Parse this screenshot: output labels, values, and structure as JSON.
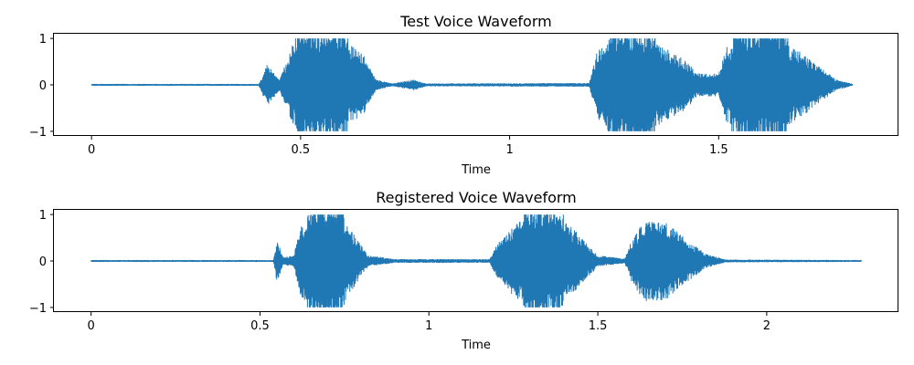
{
  "colors": {
    "series": "#1f77b4",
    "axes": "#000000",
    "background": "#ffffff"
  },
  "chart_data": [
    {
      "type": "line",
      "title": "Test Voice Waveform",
      "xlabel": "Time",
      "ylabel": "",
      "xlim": [
        -0.09,
        1.93
      ],
      "ylim": [
        -1.1,
        1.1
      ],
      "xticks": [
        0,
        0.5,
        1,
        1.5
      ],
      "xtick_labels": [
        "0",
        "0.5",
        "1",
        "1.5"
      ],
      "yticks": [
        1,
        0,
        -1
      ],
      "ytick_labels": [
        "1",
        "0",
        "−1"
      ],
      "grid": false,
      "duration": 1.82,
      "envelope": [
        [
          0.0,
          0.02
        ],
        [
          0.4,
          0.02
        ],
        [
          0.42,
          0.45
        ],
        [
          0.45,
          0.12
        ],
        [
          0.48,
          0.85
        ],
        [
          0.5,
          1.0
        ],
        [
          0.6,
          1.0
        ],
        [
          0.65,
          0.65
        ],
        [
          0.68,
          0.12
        ],
        [
          0.72,
          0.03
        ],
        [
          0.77,
          0.12
        ],
        [
          0.8,
          0.03
        ],
        [
          1.19,
          0.04
        ],
        [
          1.21,
          0.75
        ],
        [
          1.25,
          1.0
        ],
        [
          1.33,
          1.0
        ],
        [
          1.42,
          0.55
        ],
        [
          1.45,
          0.25
        ],
        [
          1.5,
          0.25
        ],
        [
          1.52,
          0.85
        ],
        [
          1.55,
          1.0
        ],
        [
          1.65,
          1.0
        ],
        [
          1.72,
          0.55
        ],
        [
          1.78,
          0.12
        ],
        [
          1.82,
          0.02
        ]
      ]
    },
    {
      "type": "line",
      "title": "Registered Voice Waveform",
      "xlabel": "Time",
      "ylabel": "",
      "xlim": [
        -0.11,
        2.39
      ],
      "ylim": [
        -1.1,
        1.1
      ],
      "xticks": [
        0,
        0.5,
        1,
        1.5,
        2
      ],
      "xtick_labels": [
        "0",
        "0.5",
        "1",
        "1.5",
        "2"
      ],
      "yticks": [
        1,
        0,
        -1
      ],
      "ytick_labels": [
        "1",
        "0",
        "−1"
      ],
      "grid": false,
      "duration": 2.28,
      "envelope": [
        [
          0.0,
          0.02
        ],
        [
          0.54,
          0.02
        ],
        [
          0.55,
          0.45
        ],
        [
          0.57,
          0.08
        ],
        [
          0.6,
          0.12
        ],
        [
          0.62,
          0.75
        ],
        [
          0.65,
          1.0
        ],
        [
          0.74,
          1.0
        ],
        [
          0.78,
          0.55
        ],
        [
          0.82,
          0.12
        ],
        [
          0.9,
          0.04
        ],
        [
          1.18,
          0.04
        ],
        [
          1.2,
          0.35
        ],
        [
          1.25,
          0.75
        ],
        [
          1.3,
          1.0
        ],
        [
          1.4,
          0.9
        ],
        [
          1.46,
          0.45
        ],
        [
          1.5,
          0.12
        ],
        [
          1.58,
          0.05
        ],
        [
          1.6,
          0.45
        ],
        [
          1.64,
          0.9
        ],
        [
          1.7,
          0.85
        ],
        [
          1.75,
          0.55
        ],
        [
          1.82,
          0.15
        ],
        [
          1.88,
          0.03
        ],
        [
          2.28,
          0.02
        ]
      ]
    }
  ]
}
